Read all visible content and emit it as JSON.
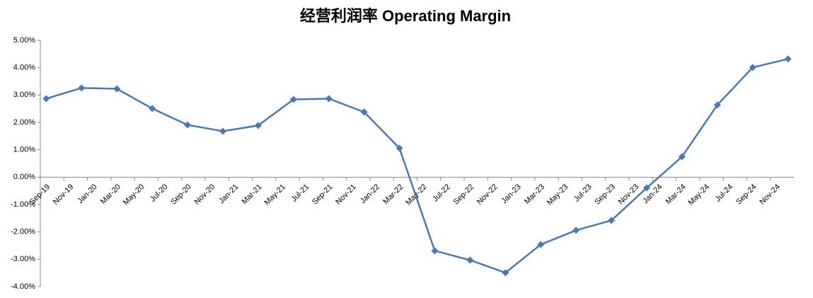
{
  "chart_data": {
    "type": "line",
    "title": "经营利润率 Operating Margin",
    "x": [
      "2019-09",
      "2019-12",
      "2020-03",
      "2020-06",
      "2020-09",
      "2020-12",
      "2021-03",
      "2021-06",
      "2021-09",
      "2021-12",
      "2022-03",
      "2022-06",
      "2022-09",
      "2022-12",
      "2023-03",
      "2023-06",
      "2023-09",
      "2023-12",
      "2024-03",
      "2024-06",
      "2024-09",
      "2024-12"
    ],
    "series": [
      {
        "name": "Operating Margin",
        "color": "#4a7ab5",
        "values": [
          2.87,
          3.26,
          3.23,
          2.51,
          1.91,
          1.68,
          1.89,
          2.84,
          2.87,
          2.38,
          1.06,
          -2.69,
          -3.03,
          -3.49,
          -2.46,
          -1.94,
          -1.58,
          -0.39,
          0.75,
          2.64,
          4.01,
          4.32
        ]
      }
    ],
    "xlim": [
      "2019-09",
      "2025-01"
    ],
    "xticks": [
      {
        "value": "2019-09",
        "label": "Sep-19"
      },
      {
        "value": "2019-11",
        "label": "Nov-19"
      },
      {
        "value": "2020-01",
        "label": "Jan-20"
      },
      {
        "value": "2020-03",
        "label": "Mar-20"
      },
      {
        "value": "2020-05",
        "label": "May-20"
      },
      {
        "value": "2020-07",
        "label": "Jul-20"
      },
      {
        "value": "2020-09",
        "label": "Sep-20"
      },
      {
        "value": "2020-11",
        "label": "Nov-20"
      },
      {
        "value": "2021-01",
        "label": "Jan-21"
      },
      {
        "value": "2021-03",
        "label": "Mar-21"
      },
      {
        "value": "2021-05",
        "label": "May-21"
      },
      {
        "value": "2021-07",
        "label": "Jul-21"
      },
      {
        "value": "2021-09",
        "label": "Sep-21"
      },
      {
        "value": "2021-11",
        "label": "Nov-21"
      },
      {
        "value": "2022-01",
        "label": "Jan-22"
      },
      {
        "value": "2022-03",
        "label": "Mar-22"
      },
      {
        "value": "2022-05",
        "label": "May-22"
      },
      {
        "value": "2022-07",
        "label": "Jul-22"
      },
      {
        "value": "2022-09",
        "label": "Sep-22"
      },
      {
        "value": "2022-11",
        "label": "Nov-22"
      },
      {
        "value": "2023-01",
        "label": "Jan-23"
      },
      {
        "value": "2023-03",
        "label": "Mar-23"
      },
      {
        "value": "2023-05",
        "label": "May-23"
      },
      {
        "value": "2023-07",
        "label": "Jul-23"
      },
      {
        "value": "2023-09",
        "label": "Sep-23"
      },
      {
        "value": "2023-11",
        "label": "Nov-23"
      },
      {
        "value": "2024-01",
        "label": "Jan-24"
      },
      {
        "value": "2024-03",
        "label": "Mar-24"
      },
      {
        "value": "2024-05",
        "label": "May-24"
      },
      {
        "value": "2024-07",
        "label": "Jul-24"
      },
      {
        "value": "2024-09",
        "label": "Sep-24"
      },
      {
        "value": "2024-11",
        "label": "Nov-24"
      }
    ],
    "ylim": [
      -4,
      5
    ],
    "yticks": [
      {
        "value": 5,
        "label": "5.00%"
      },
      {
        "value": 4,
        "label": "4.00%"
      },
      {
        "value": 3,
        "label": "3.00%"
      },
      {
        "value": 2,
        "label": "2.00%"
      },
      {
        "value": 1,
        "label": "1.00%"
      },
      {
        "value": 0,
        "label": "0.00%"
      },
      {
        "value": -1,
        "label": "-1.00%"
      },
      {
        "value": -2,
        "label": "-2.00%"
      },
      {
        "value": -3,
        "label": "-3.00%"
      },
      {
        "value": -4,
        "label": "-4.00%"
      }
    ],
    "grid": false
  }
}
